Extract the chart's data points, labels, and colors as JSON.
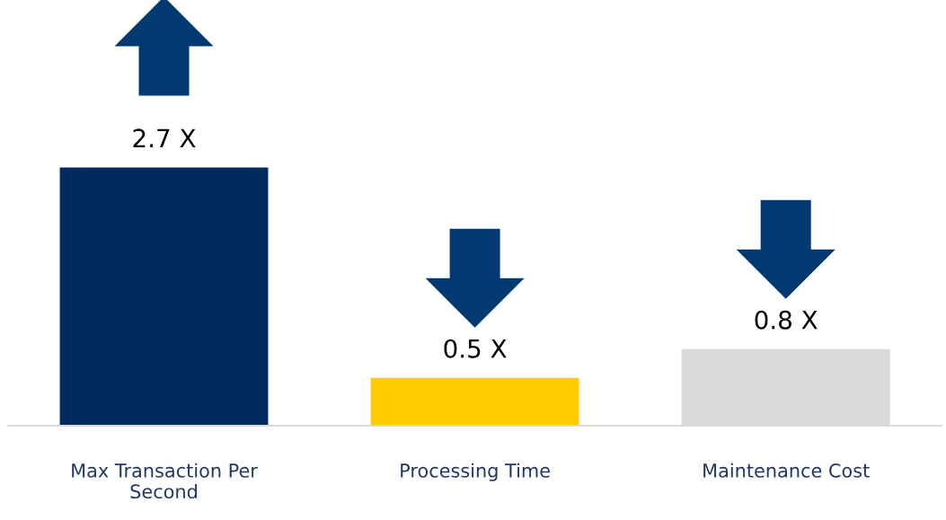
{
  "chart_data": {
    "type": "bar",
    "categories": [
      "Max Transaction Per Second",
      "Processing Time",
      "Maintenance Cost"
    ],
    "values": [
      2.7,
      0.5,
      0.8
    ],
    "colors": [
      "#002b5f",
      "#ffcc00",
      "#d9d9d9"
    ],
    "value_labels": [
      "2.7 X",
      "0.5 X",
      "0.8 X"
    ],
    "tick_labels": "x",
    "grid": false,
    "legend": false
  }
}
